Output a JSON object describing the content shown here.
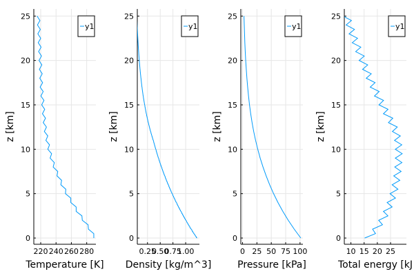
{
  "chart_data": [
    {
      "type": "line",
      "xlabel": "Temperature [K]",
      "ylabel": "z [km]",
      "xlim": [
        211,
        292
      ],
      "ylim": [
        -0.7,
        25.8
      ],
      "xticks": [
        220,
        240,
        260,
        280
      ],
      "xtick_labels": [
        "220",
        "240",
        "260",
        "280"
      ],
      "yticks": [
        0,
        5,
        10,
        15,
        20,
        25
      ],
      "ytick_labels": [
        "0",
        "5",
        "10",
        "15",
        "20",
        "25"
      ],
      "grid": true,
      "legend_position": "top-right",
      "series": [
        {
          "name": "y1",
          "color": "#009AFA",
          "style": "zigzag",
          "zigzag_amplitude_x": 3.5,
          "zigzag_step_y": 0.5,
          "x": [
            291,
            284,
            276,
            268,
            261,
            254,
            248,
            243,
            238,
            234,
            231,
            228.5,
            226.5,
            225,
            224,
            223,
            222,
            221,
            220.5,
            220,
            219.5,
            219,
            218.5,
            218,
            217.5,
            217
          ],
          "y": [
            0,
            1,
            2,
            3,
            4,
            5,
            6,
            7,
            8,
            9,
            10,
            11,
            12,
            13,
            14,
            15,
            16,
            17,
            18,
            19,
            20,
            21,
            22,
            23,
            24,
            25
          ]
        }
      ]
    },
    {
      "type": "line",
      "xlabel": "Density [kg/m^3]",
      "ylabel": "z [km]",
      "xlim": [
        0.05,
        1.27
      ],
      "ylim": [
        -0.7,
        25.8
      ],
      "xticks": [
        0.25,
        0.5,
        0.75,
        1.0
      ],
      "xtick_labels": [
        "0.25",
        "0.50",
        "0.75",
        "1.00"
      ],
      "yticks": [
        0,
        5,
        10,
        15,
        20,
        25
      ],
      "ytick_labels": [
        "0",
        "5",
        "10",
        "15",
        "20",
        "25"
      ],
      "grid": true,
      "legend_position": "top-right",
      "series": [
        {
          "name": "y1",
          "color": "#009AFA",
          "style": "step",
          "x": [
            1.225,
            1.11,
            1.007,
            0.909,
            0.819,
            0.736,
            0.66,
            0.59,
            0.526,
            0.467,
            0.414,
            0.365,
            0.312,
            0.267,
            0.228,
            0.195,
            0.166,
            0.142,
            0.122,
            0.104,
            0.089,
            0.076,
            0.065,
            0.056,
            0.047,
            0.04
          ],
          "y": [
            0,
            1,
            2,
            3,
            4,
            5,
            6,
            7,
            8,
            9,
            10,
            11,
            12,
            13,
            14,
            15,
            16,
            17,
            18,
            19,
            20,
            21,
            22,
            23,
            24,
            25
          ]
        }
      ]
    },
    {
      "type": "line",
      "xlabel": "Pressure [kPa]",
      "ylabel": "z [km]",
      "xlim": [
        -3,
        105
      ],
      "ylim": [
        -0.7,
        25.8
      ],
      "xticks": [
        0,
        25,
        50,
        75,
        100
      ],
      "xtick_labels": [
        "0",
        "25",
        "50",
        "75",
        "100"
      ],
      "yticks": [
        0,
        5,
        10,
        15,
        20,
        25
      ],
      "ytick_labels": [
        "0",
        "5",
        "10",
        "15",
        "20",
        "25"
      ],
      "grid": true,
      "legend_position": "top-right",
      "series": [
        {
          "name": "y1",
          "color": "#009AFA",
          "style": "line",
          "x": [
            101.3,
            89.9,
            79.5,
            70.1,
            61.6,
            54.0,
            47.2,
            41.1,
            35.6,
            30.7,
            26.5,
            22.7,
            19.4,
            16.6,
            14.2,
            12.1,
            10.4,
            8.9,
            7.6,
            6.5,
            5.5,
            4.7,
            4.0,
            3.5,
            3.0,
            2.5
          ],
          "y": [
            0,
            1,
            2,
            3,
            4,
            5,
            6,
            7,
            8,
            9,
            10,
            11,
            12,
            13,
            14,
            15,
            16,
            17,
            18,
            19,
            20,
            21,
            22,
            23,
            24,
            25
          ]
        }
      ]
    },
    {
      "type": "line",
      "xlabel": "Total energy [kJ",
      "ylabel": "z [km]",
      "xlim": [
        7.5,
        31
      ],
      "ylim": [
        -0.7,
        25.8
      ],
      "xticks": [
        10,
        15,
        20,
        25
      ],
      "xtick_labels": [
        "10",
        "15",
        "20",
        "25"
      ],
      "yticks": [
        0,
        5,
        10,
        15,
        20,
        25
      ],
      "ytick_labels": [
        "0",
        "5",
        "10",
        "15",
        "20",
        "25"
      ],
      "grid": true,
      "legend_position": "top-right",
      "series": [
        {
          "name": "y1",
          "color": "#009AFA",
          "style": "zigzag",
          "zigzag_amplitude_x": 2.6,
          "zigzag_step_y": 0.5,
          "x": [
            16.5,
            19.5,
            21.8,
            23.6,
            25.0,
            26.1,
            26.9,
            27.5,
            27.9,
            28.1,
            28.1,
            27.8,
            27.0,
            25.5,
            23.6,
            21.9,
            20.2,
            18.6,
            17.1,
            15.7,
            14.4,
            13.1,
            11.8,
            10.6,
            9.5,
            8.3
          ],
          "y": [
            0,
            1,
            2,
            3,
            4,
            5,
            6,
            7,
            8,
            9,
            10,
            11,
            12,
            13,
            14,
            15,
            16,
            17,
            18,
            19,
            20,
            21,
            22,
            23,
            24,
            25
          ]
        }
      ]
    }
  ]
}
